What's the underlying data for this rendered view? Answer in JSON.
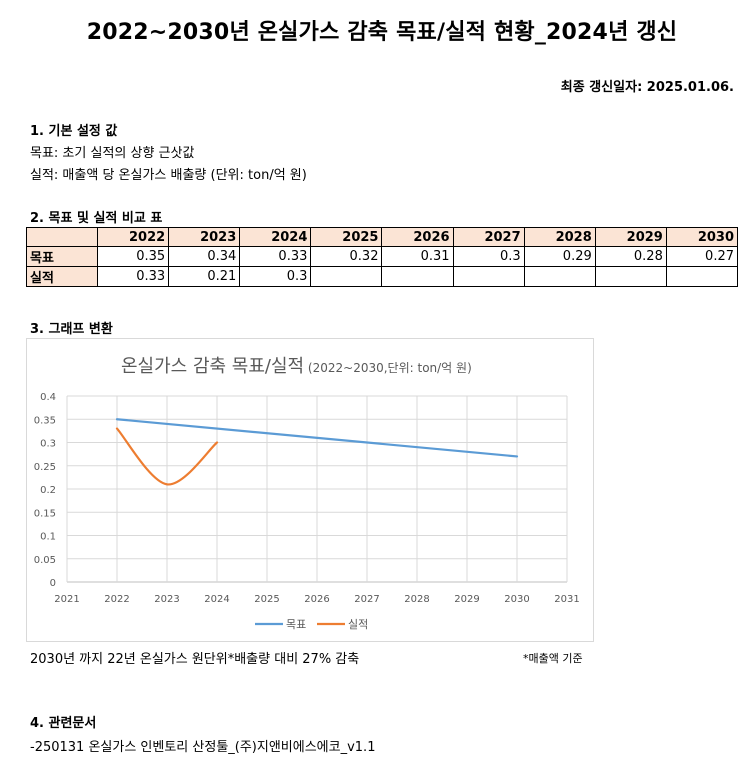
{
  "title": "2022~2030년 온실가스 감축 목표/실적 현황_2024년 갱신",
  "update_date": "최종 갱신일자: 2025.01.06.",
  "section1": {
    "heading": "1. 기본 설정 값",
    "line1": "목표: 초기 실적의 상향 근삿값",
    "line2": "실적: 매출액 당 온실가스 배출량 (단위: ton/억 원)"
  },
  "section2": {
    "heading": "2. 목표 및 실적 비교 표",
    "years": [
      "2022",
      "2023",
      "2024",
      "2025",
      "2026",
      "2027",
      "2028",
      "2029",
      "2030"
    ],
    "rows": [
      {
        "label": "목표",
        "values": [
          "0.35",
          "0.34",
          "0.33",
          "0.32",
          "0.31",
          "0.3",
          "0.29",
          "0.28",
          "0.27"
        ]
      },
      {
        "label": "실적",
        "values": [
          "0.33",
          "0.21",
          "0.3",
          "",
          "",
          "",
          "",
          "",
          ""
        ]
      }
    ]
  },
  "section3": {
    "heading": "3. 그래프 변환",
    "note_left": "2030년 까지 22년 온실가스 원단위*배출량 대비 27% 감축",
    "note_right": "*매출액 기준"
  },
  "section4": {
    "heading": "4. 관련문서",
    "doc": " -250131 온실가스 인벤토리 산정툴_(주)지앤비에스에코_v1.1"
  },
  "chart_data": {
    "type": "line",
    "title": "온실가스 감축 목표/실적",
    "subtitle": "(2022~2030,단위: ton/억 원)",
    "xlabel": "",
    "ylabel": "",
    "xlim": [
      2021,
      2031
    ],
    "ylim": [
      0,
      0.4
    ],
    "x_ticks": [
      "2021",
      "2022",
      "2023",
      "2024",
      "2025",
      "2026",
      "2027",
      "2028",
      "2029",
      "2030",
      "2031"
    ],
    "y_ticks": [
      "0",
      "0.05",
      "0.1",
      "0.15",
      "0.2",
      "0.25",
      "0.3",
      "0.35",
      "0.4"
    ],
    "grid": true,
    "legend": "bottom",
    "series": [
      {
        "name": "목표",
        "color": "#5b9bd5",
        "smooth": false,
        "x": [
          2022,
          2030
        ],
        "y": [
          0.35,
          0.27
        ]
      },
      {
        "name": "실적",
        "color": "#ed7d31",
        "smooth": true,
        "x": [
          2022,
          2023,
          2024
        ],
        "y": [
          0.33,
          0.21,
          0.3
        ]
      }
    ]
  }
}
